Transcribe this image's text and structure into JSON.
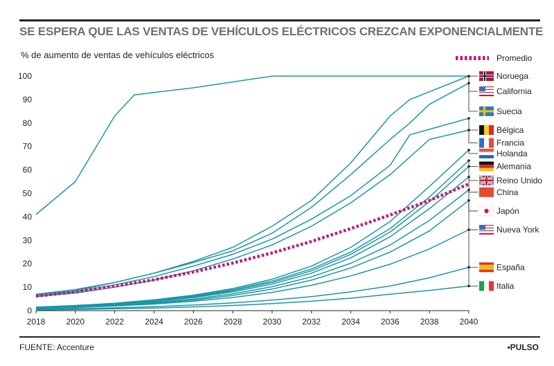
{
  "title": "SE ESPERA QUE LAS VENTAS DE VEHÍCULOS ELÉCTRICOS CREZCAN EXPONENCIALMENTE",
  "source": "FUENTE: Accenture",
  "brand": "•PULSO",
  "chart_data": {
    "type": "line",
    "ylabel": "% de aumento de ventas de vehículos eléctricos",
    "xlabel": "",
    "xlim": [
      2018,
      2040
    ],
    "ylim": [
      0,
      100
    ],
    "x_ticks": [
      "2018",
      "2020",
      "2022",
      "2024",
      "2026",
      "2028",
      "2030",
      "2032",
      "2034",
      "2036",
      "2038",
      "2040"
    ],
    "y_ticks": [
      "0",
      "10",
      "20",
      "30",
      "40",
      "50",
      "60",
      "70",
      "80",
      "90",
      "100"
    ],
    "grid": false,
    "legend": "right",
    "colors": {
      "series": "#1a96a6",
      "average": "#c2187b",
      "leader": "#222222"
    },
    "series": [
      {
        "name": "Noruega",
        "flag": "norway",
        "label_y": 100,
        "points": [
          [
            2018,
            41
          ],
          [
            2020,
            55
          ],
          [
            2022,
            83
          ],
          [
            2023,
            92
          ],
          [
            2026,
            95
          ],
          [
            2030,
            100
          ],
          [
            2040,
            100
          ]
        ]
      },
      {
        "name": "California",
        "flag": "usa",
        "label_y": 93.5,
        "points": [
          [
            2018,
            7
          ],
          [
            2020,
            9
          ],
          [
            2022,
            12
          ],
          [
            2024,
            16
          ],
          [
            2026,
            20.5
          ],
          [
            2028,
            25.5
          ],
          [
            2030,
            33
          ],
          [
            2032,
            44
          ],
          [
            2034,
            58
          ],
          [
            2036,
            73
          ],
          [
            2037,
            80
          ],
          [
            2038,
            88
          ],
          [
            2040,
            97
          ]
        ]
      },
      {
        "name": "Suecia",
        "flag": "sweden",
        "label_y": 85,
        "points": [
          [
            2018,
            6.5
          ],
          [
            2020,
            8.5
          ],
          [
            2022,
            12
          ],
          [
            2024,
            16
          ],
          [
            2026,
            21
          ],
          [
            2028,
            27
          ],
          [
            2030,
            36
          ],
          [
            2032,
            47
          ],
          [
            2034,
            63
          ],
          [
            2035,
            73
          ],
          [
            2036,
            83
          ],
          [
            2037,
            90
          ],
          [
            2040,
            100
          ]
        ]
      },
      {
        "name": "Bélgica",
        "flag": "belgium",
        "label_y": 77,
        "points": [
          [
            2018,
            6.5
          ],
          [
            2020,
            8
          ],
          [
            2022,
            11
          ],
          [
            2024,
            14.5
          ],
          [
            2026,
            19
          ],
          [
            2028,
            24
          ],
          [
            2030,
            30.5
          ],
          [
            2032,
            39
          ],
          [
            2034,
            49
          ],
          [
            2036,
            62
          ],
          [
            2037,
            75
          ],
          [
            2040,
            82
          ]
        ]
      },
      {
        "name": "Francia",
        "flag": "france",
        "label_y": 71.5,
        "points": [
          [
            2018,
            6
          ],
          [
            2020,
            7.5
          ],
          [
            2022,
            10
          ],
          [
            2024,
            13
          ],
          [
            2026,
            17
          ],
          [
            2028,
            22
          ],
          [
            2030,
            28
          ],
          [
            2032,
            36
          ],
          [
            2034,
            46
          ],
          [
            2036,
            58
          ],
          [
            2038,
            73
          ],
          [
            2040,
            77
          ]
        ]
      },
      {
        "name": "Holanda",
        "flag": "netherlands",
        "label_y": 67,
        "points": [
          [
            2018,
            1.5
          ],
          [
            2020,
            2.2
          ],
          [
            2022,
            3.2
          ],
          [
            2024,
            4.6
          ],
          [
            2026,
            6.6
          ],
          [
            2028,
            9.4
          ],
          [
            2030,
            13.4
          ],
          [
            2032,
            19
          ],
          [
            2034,
            27
          ],
          [
            2036,
            38
          ],
          [
            2038,
            53
          ],
          [
            2040,
            68.5
          ]
        ]
      },
      {
        "name": "Alemania",
        "flag": "germany",
        "label_y": 61.5,
        "points": [
          [
            2018,
            1.4
          ],
          [
            2020,
            2.1
          ],
          [
            2022,
            3.0
          ],
          [
            2024,
            4.3
          ],
          [
            2026,
            6.2
          ],
          [
            2028,
            8.9
          ],
          [
            2030,
            12.6
          ],
          [
            2032,
            17.8
          ],
          [
            2034,
            25
          ],
          [
            2036,
            35
          ],
          [
            2038,
            48.5
          ],
          [
            2040,
            64
          ]
        ]
      },
      {
        "name": "Reino Unido",
        "flag": "uk",
        "label_y": 55.5,
        "points": [
          [
            2018,
            1.3
          ],
          [
            2020,
            2.0
          ],
          [
            2022,
            2.9
          ],
          [
            2024,
            4.1
          ],
          [
            2026,
            5.9
          ],
          [
            2028,
            8.5
          ],
          [
            2030,
            12
          ],
          [
            2032,
            17
          ],
          [
            2034,
            24
          ],
          [
            2036,
            33.5
          ],
          [
            2038,
            46.5
          ],
          [
            2040,
            61.5
          ]
        ]
      },
      {
        "name": "China",
        "flag": "china",
        "label_y": 50.5,
        "points": [
          [
            2018,
            1.2
          ],
          [
            2020,
            1.9
          ],
          [
            2022,
            2.7
          ],
          [
            2024,
            3.9
          ],
          [
            2026,
            5.6
          ],
          [
            2028,
            8
          ],
          [
            2030,
            11.3
          ],
          [
            2032,
            16
          ],
          [
            2034,
            22.5
          ],
          [
            2036,
            31.5
          ],
          [
            2038,
            43.5
          ],
          [
            2040,
            57
          ]
        ]
      },
      {
        "name": "Japón",
        "flag": "japan",
        "label_y": 42.5,
        "points": [
          [
            2018,
            1
          ],
          [
            2020,
            1.6
          ],
          [
            2022,
            2.4
          ],
          [
            2024,
            3.5
          ],
          [
            2026,
            5
          ],
          [
            2028,
            7.2
          ],
          [
            2030,
            10.2
          ],
          [
            2032,
            14.4
          ],
          [
            2034,
            20.2
          ],
          [
            2036,
            28
          ],
          [
            2038,
            38.5
          ],
          [
            2040,
            51.5
          ]
        ]
      },
      {
        "name": "Nueva York",
        "flag": "usa",
        "label_y": 34.5,
        "points": [
          [
            2018,
            0.9
          ],
          [
            2020,
            1.5
          ],
          [
            2022,
            2.2
          ],
          [
            2024,
            3.2
          ],
          [
            2026,
            4.5
          ],
          [
            2028,
            6.5
          ],
          [
            2030,
            9.2
          ],
          [
            2032,
            13
          ],
          [
            2034,
            18.2
          ],
          [
            2036,
            25
          ],
          [
            2038,
            34
          ],
          [
            2040,
            47
          ]
        ]
      },
      {
        "name": "España",
        "flag": "spain",
        "label_y": 18.5,
        "points": [
          [
            2018,
            0.8
          ],
          [
            2020,
            1.3
          ],
          [
            2022,
            2
          ],
          [
            2024,
            2.8
          ],
          [
            2026,
            4
          ],
          [
            2028,
            5.6
          ],
          [
            2030,
            7.8
          ],
          [
            2032,
            10.8
          ],
          [
            2034,
            14.8
          ],
          [
            2036,
            19.8
          ],
          [
            2038,
            26.3
          ],
          [
            2040,
            34.5
          ]
        ]
      },
      {
        "name": "Italia",
        "flag": "italy",
        "label_y": 10.5,
        "points": [
          [
            2018,
            0.5
          ],
          [
            2020,
            0.8
          ],
          [
            2022,
            1.2
          ],
          [
            2024,
            1.7
          ],
          [
            2026,
            2.4
          ],
          [
            2028,
            3.3
          ],
          [
            2030,
            4.5
          ],
          [
            2032,
            6
          ],
          [
            2034,
            8
          ],
          [
            2036,
            10.5
          ],
          [
            2038,
            14
          ],
          [
            2040,
            18.5
          ]
        ]
      },
      {
        "name": "",
        "flag": "",
        "label_y": null,
        "points": [
          [
            2018,
            0.3
          ],
          [
            2020,
            0.5
          ],
          [
            2022,
            0.8
          ],
          [
            2024,
            1.1
          ],
          [
            2026,
            1.6
          ],
          [
            2028,
            2.2
          ],
          [
            2030,
            3
          ],
          [
            2032,
            4
          ],
          [
            2034,
            5.3
          ],
          [
            2036,
            7
          ],
          [
            2038,
            8.6
          ],
          [
            2040,
            10.5
          ]
        ]
      }
    ],
    "average": {
      "name": "Promedio",
      "points": [
        [
          2018,
          6.2
        ],
        [
          2020,
          8
        ],
        [
          2022,
          10.5
        ],
        [
          2024,
          13.2
        ],
        [
          2026,
          16.5
        ],
        [
          2028,
          20.3
        ],
        [
          2030,
          24.6
        ],
        [
          2032,
          29.5
        ],
        [
          2034,
          35
        ],
        [
          2036,
          40.8
        ],
        [
          2038,
          47
        ],
        [
          2040,
          54
        ]
      ]
    }
  }
}
